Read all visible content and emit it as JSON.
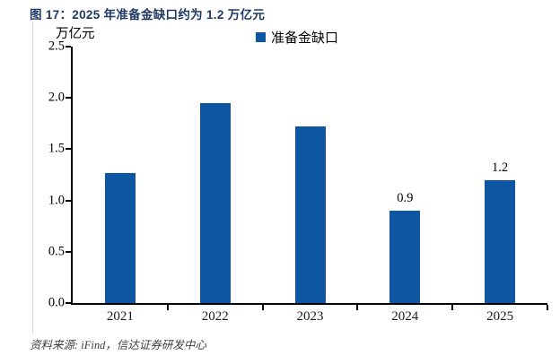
{
  "chart_data": {
    "type": "bar",
    "title": "图 17：2025 年准备金缺口约为 1.2 万亿元",
    "unit_label": "万亿元",
    "legend": "准备金缺口",
    "legend_position": "top-center",
    "categories": [
      "2021",
      "2022",
      "2023",
      "2024",
      "2025"
    ],
    "values": [
      1.27,
      1.95,
      1.72,
      0.9,
      1.2
    ],
    "bar_labels": [
      "",
      "",
      "",
      "0.9",
      "1.2"
    ],
    "ylim": [
      0,
      2.5
    ],
    "ytick_labels": [
      "0.0",
      "0.5",
      "1.0",
      "1.5",
      "2.0",
      "2.5"
    ],
    "grid": false,
    "source": "资料来源: iFind，信达证券研发中心",
    "colors": {
      "bar": "#0d57a2",
      "title": "#1f3864",
      "axis": "#000000",
      "source_text": "#404040"
    }
  }
}
